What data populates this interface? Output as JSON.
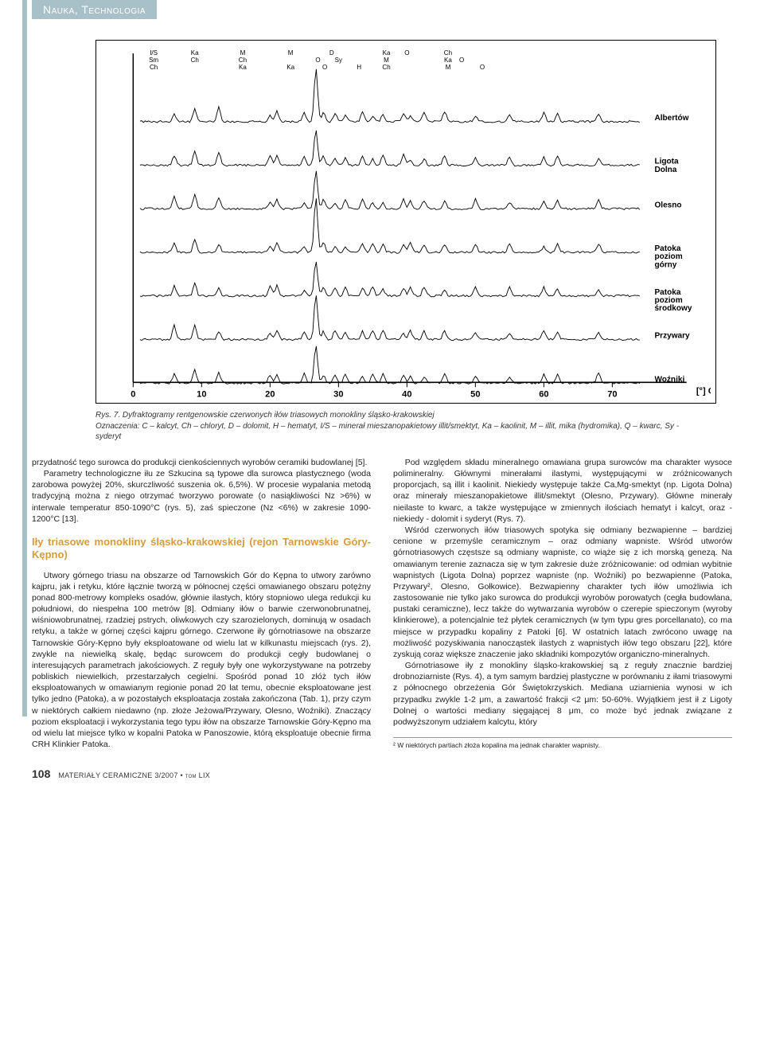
{
  "header": {
    "section": "Nauka, Technologia"
  },
  "chart": {
    "type": "xrd-stacked-lines",
    "x_axis": {
      "label": "[°] CuKα",
      "ticks": [
        0,
        10,
        20,
        30,
        40,
        50,
        60,
        70
      ],
      "xlim": [
        0,
        75
      ]
    },
    "series_labels": [
      "Albertów",
      "Ligota Dolna",
      "Olesno",
      "Patoka poziom górny",
      "Patoka poziom środkowy",
      "Przywary",
      "Woźniki"
    ],
    "peak_labels": [
      "I/S",
      "Sm",
      "Ch",
      "Ka",
      "Ch",
      "Ka",
      "M",
      "Ch",
      "Ka",
      "M",
      "O",
      "O",
      "D",
      "Sy",
      "H",
      "Ka",
      "M",
      "Ch",
      "O",
      "Ka",
      "M",
      "Ch",
      "O",
      "O"
    ],
    "peak_label_positions_x": [
      3,
      3,
      3,
      9,
      9,
      16,
      16,
      16,
      23,
      23,
      27,
      28,
      29,
      30,
      33,
      37,
      37,
      37,
      40,
      46,
      46,
      46,
      48,
      51
    ],
    "background_color": "#ffffff",
    "line_color": "#000000",
    "label_fontsize": 8,
    "axis_fontsize": 11
  },
  "caption": {
    "num": "Rys. 7.",
    "text": "Dyfraktogramy rentgenowskie czerwonych iłów triasowych monokliny śląsko-krakowskiej",
    "legend": "Oznaczenia: C – kalcyt, Ch – chloryt, D – dolomit, H – hematyt, I/S – minerał mieszanopakietowy illit/smektyt, Ka – kaolinit, M – illit, mika (hydromika), Q – kwarc, Sy - syderyt"
  },
  "left_col": {
    "p1": "przydatność tego surowca do produkcji cienkościennych wyrobów ceramiki budowlanej [5].",
    "p2": "Parametry technologiczne iłu ze Szkucina są typowe dla surowca plastycznego (woda zarobowa powyżej 20%, skurczliwość suszenia ok. 6,5%). W procesie wypalania metodą tradycyjną można z niego otrzymać tworzywo porowate (o nasiąkliwości Nz >6%) w interwale temperatur 850-1090°C (rys. 5), zaś spieczone (Nz <6%) w zakresie 1090-1200°C [13].",
    "subhead": "Iły triasowe monokliny śląsko-krakowskiej (rejon Tarnowskie Góry-Kępno)",
    "p3": "Utwory górnego triasu na obszarze od Tarnowskich Gór do Kępna to utwory zarówno kajpru, jak i retyku, które łącznie tworzą w północnej części omawianego obszaru potężny ponad 800-metrowy kompleks osadów, głównie ilastych, który stopniowo ulega redukcji ku południowi, do niespełna 100 metrów [8]. Odmiany iłów o barwie czerwonobrunatnej, wiśniowobrunatnej, rzadziej pstrych, oliwkowych czy szarozielonych, dominują w osadach retyku, a także w górnej części kajpru górnego. Czerwone iły górnotriasowe na obszarze Tarnowskie Góry-Kępno były eksploatowane od wielu lat w kilkunastu miejscach (rys. 2), zwykle na niewielką skalę, będąc surowcem do produkcji cegły budowlanej o interesujących parametrach jakościowych. Z reguły były one wykorzystywane na potrzeby pobliskich niewielkich, przestarzałych cegielni. Spośród ponad 10 złóż tych iłów eksploatowanych w omawianym regionie ponad 20 lat temu, obecnie eksploatowane jest tylko jedno (Patoka), a w pozostałych eksploatacja została zakończona (Tab. 1), przy czym w niektórych całkiem niedawno (np. złoże Jeżowa/Przywary, Olesno, Woźniki). Znaczący poziom eksploatacji i wykorzystania tego typu iłów na obszarze Tarnowskie Góry-Kępno ma od wielu lat miejsce tylko w kopalni Patoka w Panoszowie, którą eksploatuje obecnie firma CRH Klinkier Patoka."
  },
  "right_col": {
    "p1": "Pod względem składu mineralnego omawiana grupa surowców ma charakter wysoce polimineralny. Głównymi minerałami ilastymi, występującymi w zróżnicowanych proporcjach, są illit i kaolinit. Niekiedy występuje także Ca,Mg-smektyt (np. Ligota Dolna) oraz minerały mieszanopakietowe illit/smektyt (Olesno, Przywary). Główne minerały nieilaste to kwarc, a także występujące w zmiennych ilościach hematyt i kalcyt, oraz -niekiedy - dolomit i syderyt (Rys. 7).",
    "p2": "Wśród czerwonych iłów triasowych spotyka się odmiany bezwapienne – bardziej cenione w przemyśle ceramicznym – oraz odmiany wapniste. Wśród utworów górnotriasowych częstsze są odmiany wapniste, co wiąże się z ich morską genezą. Na omawianym terenie zaznacza się w tym zakresie duże zróżnicowanie: od odmian wybitnie wapnistych (Ligota Dolna) poprzez wapniste (np. Woźniki) po bezwapienne (Patoka, Przywary², Olesno, Gołkowice). Bezwapienny charakter tych iłów umożliwia ich zastosowanie nie tylko jako surowca do produkcji wyrobów porowatych (cegła budowlana, pustaki ceramiczne), lecz także do wytwarzania wyrobów o czerepie spieczonym (wyroby klinkierowe), a potencjalnie też płytek ceramicznych (w tym typu gres porcellanato), co ma miejsce w przypadku kopaliny z Patoki [6]. W ostatnich latach zwrócono uwagę na możliwość pozyskiwania nanocząstek ilastych z wapnistych iłów tego obszaru [22], które zyskują coraz większe znaczenie jako składniki kompozytów organiczno-mineralnych.",
    "p3": "Górnotriasowe iły z monokliny śląsko-krakowskiej są z reguły znacznie bardziej drobnoziarniste (Rys. 4), a tym samym bardziej plastyczne w porównaniu z iłami triasowymi z północnego obrzeżenia Gór Świętokrzyskich. Mediana uziarnienia wynosi w ich przypadku zwykle 1-2 μm, a zawartość frakcji <2 μm: 50-60%. Wyjątkiem jest ił z Ligoty Dolnej o wartości mediany sięgającej 8 μm, co może być jednak związane z podwyższonym udziałem kalcytu, który",
    "footnote": "² W niektórych partiach złoża kopalina ma jednak charakter wapnisty."
  },
  "footer": {
    "page": "108",
    "journal": "MATERIAŁY CERAMICZNE 3/2007 • tom LIX"
  }
}
